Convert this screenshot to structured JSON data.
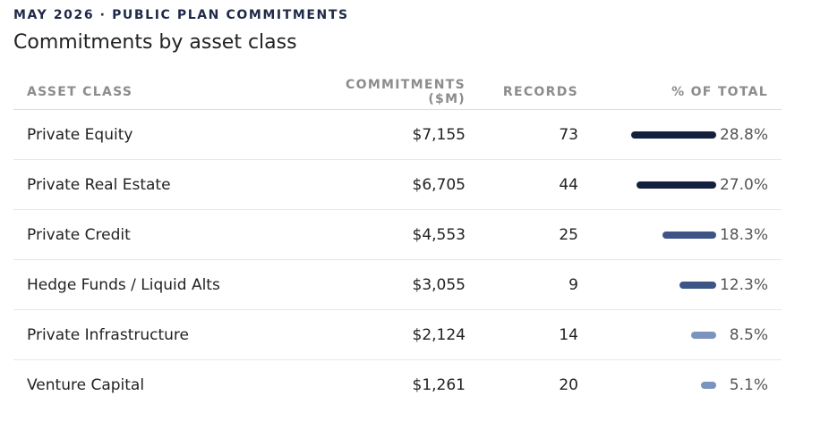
{
  "header": {
    "eyebrow": "MAY 2026 · PUBLIC PLAN COMMITMENTS",
    "title": "Commitments by asset class"
  },
  "table": {
    "columns": [
      "ASSET CLASS",
      "COMMITMENTS ($M)",
      "RECORDS",
      "% OF TOTAL"
    ],
    "rows": [
      {
        "asset_class": "Private Equity",
        "commitments": "$7,155",
        "records": 73,
        "share": {
          "value": 28.8,
          "label": "28.8%"
        },
        "color": "#13213f"
      },
      {
        "asset_class": "Private Real Estate",
        "commitments": "$6,705",
        "records": 44,
        "share": {
          "value": 27.0,
          "label": "27.0%"
        },
        "color": "#13213f"
      },
      {
        "asset_class": "Private Credit",
        "commitments": "$4,553",
        "records": 25,
        "share": {
          "value": 18.3,
          "label": "18.3%"
        },
        "color": "#3d5486"
      },
      {
        "asset_class": "Hedge Funds / Liquid Alts",
        "commitments": "$3,055",
        "records": 9,
        "share": {
          "value": 12.3,
          "label": "12.3%"
        },
        "color": "#3d5486"
      },
      {
        "asset_class": "Private Infrastructure",
        "commitments": "$2,124",
        "records": 14,
        "share": {
          "value": 8.5,
          "label": "8.5%"
        },
        "color": "#7a93bf"
      },
      {
        "asset_class": "Venture Capital",
        "commitments": "$1,261",
        "records": 20,
        "share": {
          "value": 5.1,
          "label": "5.1%"
        },
        "color": "#7a93bf"
      }
    ]
  }
}
